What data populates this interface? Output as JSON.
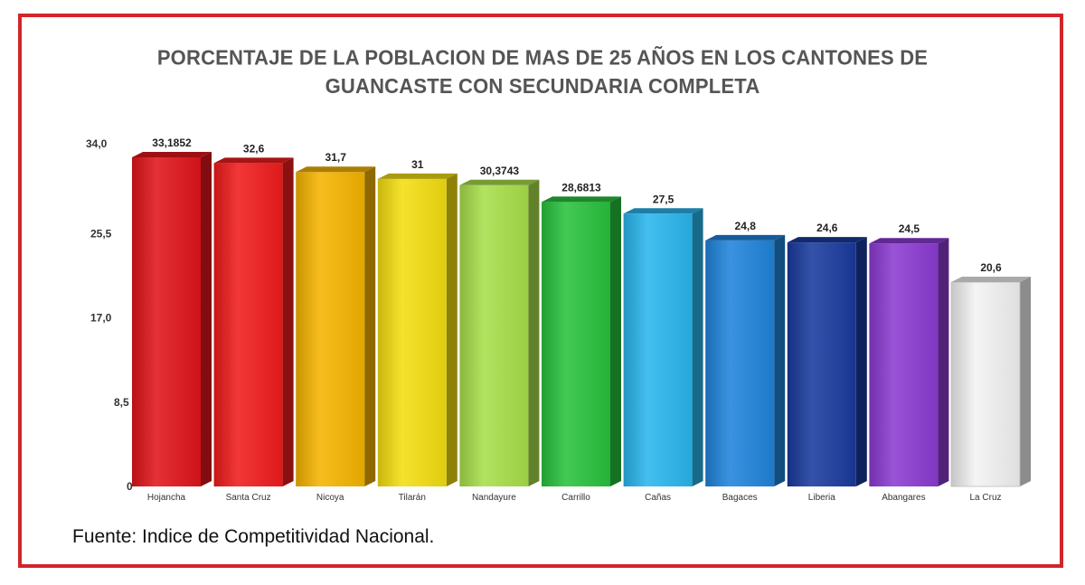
{
  "frame": {
    "border_color": "#d0262a"
  },
  "title_lines": [
    "PORCENTAJE DE LA POBLACION DE MAS DE 25 AÑOS EN LOS CANTONES DE",
    "GUANCASTE CON SECUNDARIA COMPLETA"
  ],
  "source": "Fuente: Indice de Competitividad Nacional.",
  "chart_data": {
    "type": "bar",
    "title": "PORCENTAJE DE LA POBLACION DE MAS DE 25 AÑOS EN LOS CANTONES DE GUANCASTE CON SECUNDARIA COMPLETA",
    "xlabel": "",
    "ylabel": "",
    "ylim": [
      0,
      34.0
    ],
    "yticks": [
      "34,0",
      "25,5",
      "17,0",
      "8,5",
      "0"
    ],
    "ytick_values": [
      34.0,
      25.5,
      17.0,
      8.5,
      0
    ],
    "grid": false,
    "bars": [
      {
        "category": "Hojancha",
        "value": 33.1852,
        "label": "33,1852",
        "color": "#e0151b"
      },
      {
        "category": "Santa Cruz",
        "value": 32.6,
        "label": "32,6",
        "color": "#f01c1c"
      },
      {
        "category": "Nicoya",
        "value": 31.7,
        "label": "31,7",
        "color": "#f6b400"
      },
      {
        "category": "Tilarán",
        "value": 31,
        "label": "31",
        "color": "#f4de10"
      },
      {
        "category": "Nandayure",
        "value": 30.3743,
        "label": "30,3743",
        "color": "#a8df4a"
      },
      {
        "category": "Carrillo",
        "value": 28.6813,
        "label": "28,6813",
        "color": "#28c23d"
      },
      {
        "category": "Cañas",
        "value": 27.5,
        "label": "27,5",
        "color": "#29b6ee"
      },
      {
        "category": "Bagaces",
        "value": 24.8,
        "label": "24,8",
        "color": "#1f84dc"
      },
      {
        "category": "Liberia",
        "value": 24.6,
        "label": "24,6",
        "color": "#1a3a9e"
      },
      {
        "category": "Abangares",
        "value": 24.5,
        "label": "24,5",
        "color": "#8b3bd2"
      },
      {
        "category": "La Cruz",
        "value": 20.6,
        "label": "20,6",
        "color": "#f2f2f2"
      }
    ]
  }
}
